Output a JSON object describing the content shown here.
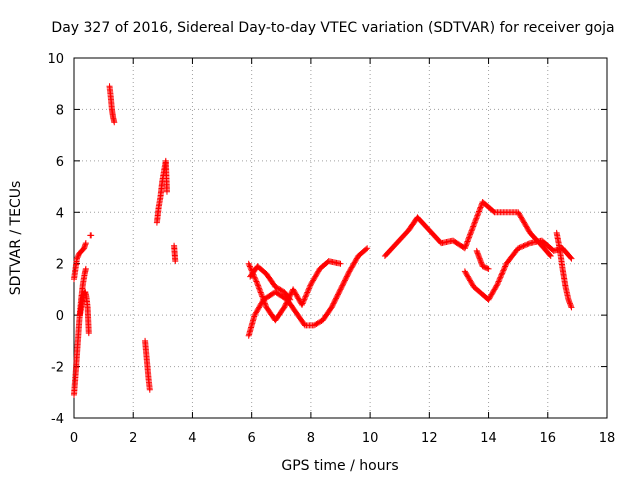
{
  "chart_data": {
    "type": "scatter",
    "title": "Day 327 of 2016, Sidereal Day-to-day VTEC variation (SDTVAR) for receiver goja",
    "xlabel": "GPS time / hours",
    "ylabel": "SDTVAR / TECUs",
    "xlim": [
      0,
      18
    ],
    "ylim": [
      -4,
      10
    ],
    "xticks": [
      0,
      2,
      4,
      6,
      8,
      10,
      12,
      14,
      16,
      18
    ],
    "yticks": [
      -4,
      -2,
      0,
      2,
      4,
      6,
      8,
      10
    ],
    "grid": true,
    "marker": "+",
    "color": "#ff0000",
    "series_segments": [
      {
        "x": [
          0.0,
          0.06,
          0.12,
          0.18,
          0.24,
          0.3,
          0.36,
          0.4
        ],
        "y": [
          -3.1,
          -2.2,
          -1.2,
          -0.2,
          0.6,
          1.2,
          1.6,
          1.8
        ]
      },
      {
        "x": [
          0.0,
          0.05,
          0.1,
          0.18,
          0.26,
          0.34,
          0.4
        ],
        "y": [
          1.4,
          1.8,
          2.2,
          2.4,
          2.5,
          2.6,
          2.8
        ]
      },
      {
        "x": [
          0.2,
          0.26,
          0.32,
          0.38,
          0.42,
          0.46,
          0.5
        ],
        "y": [
          0.0,
          0.4,
          0.8,
          0.9,
          0.7,
          0.3,
          -0.7
        ]
      },
      {
        "x": [
          0.55,
          0.58
        ],
        "y": [
          3.1,
          3.1
        ]
      },
      {
        "x": [
          1.2,
          1.24,
          1.28,
          1.32,
          1.36
        ],
        "y": [
          8.9,
          8.5,
          8.0,
          7.7,
          7.5
        ]
      },
      {
        "x": [
          2.4,
          2.44,
          2.48,
          2.52,
          2.56
        ],
        "y": [
          -1.0,
          -1.5,
          -2.0,
          -2.5,
          -2.9
        ]
      },
      {
        "x": [
          2.8,
          2.86,
          2.92,
          2.98,
          3.04,
          3.1,
          3.14
        ],
        "y": [
          3.6,
          4.2,
          4.6,
          5.2,
          5.6,
          6.0,
          4.8
        ]
      },
      {
        "x": [
          3.38,
          3.42
        ],
        "y": [
          2.7,
          2.1
        ]
      },
      {
        "x": [
          5.9,
          6.1,
          6.4,
          6.8,
          7.2,
          7.5,
          7.8,
          8.1,
          8.4,
          8.7,
          9.0,
          9.3,
          9.6,
          9.9
        ],
        "y": [
          -0.8,
          0.0,
          0.6,
          0.9,
          0.6,
          0.1,
          -0.4,
          -0.4,
          -0.2,
          0.3,
          1.0,
          1.7,
          2.3,
          2.6
        ]
      },
      {
        "x": [
          5.9,
          6.2,
          6.5,
          6.8,
          7.1,
          7.4,
          7.7,
          8.0,
          8.3,
          8.6,
          9.0
        ],
        "y": [
          2.0,
          1.2,
          0.3,
          -0.2,
          0.3,
          1.0,
          0.4,
          1.2,
          1.8,
          2.1,
          2.0
        ]
      },
      {
        "x": [
          5.95,
          6.2,
          6.5,
          6.8,
          7.1,
          7.3
        ],
        "y": [
          1.5,
          1.9,
          1.6,
          1.1,
          0.9,
          0.6
        ]
      },
      {
        "x": [
          10.5,
          10.9,
          11.3,
          11.6,
          12.0,
          12.4,
          12.8,
          13.2,
          13.5,
          13.8,
          14.2,
          14.6,
          15.0,
          15.4,
          15.8,
          16.1
        ],
        "y": [
          2.3,
          2.8,
          3.3,
          3.8,
          3.3,
          2.8,
          2.9,
          2.6,
          3.5,
          4.4,
          4.0,
          4.0,
          4.0,
          3.2,
          2.7,
          2.3
        ]
      },
      {
        "x": [
          13.2,
          13.5,
          13.8,
          14.0,
          14.3,
          14.6,
          15.0,
          15.4,
          15.8,
          16.2,
          16.5,
          16.8
        ],
        "y": [
          1.7,
          1.1,
          0.8,
          0.6,
          1.2,
          2.0,
          2.6,
          2.8,
          2.9,
          2.5,
          2.6,
          2.2
        ]
      },
      {
        "x": [
          13.6,
          13.8,
          14.0
        ],
        "y": [
          2.5,
          1.9,
          1.8
        ]
      },
      {
        "x": [
          16.3,
          16.4,
          16.5,
          16.6,
          16.7,
          16.8
        ],
        "y": [
          3.2,
          2.6,
          1.8,
          1.1,
          0.6,
          0.3
        ]
      }
    ]
  }
}
